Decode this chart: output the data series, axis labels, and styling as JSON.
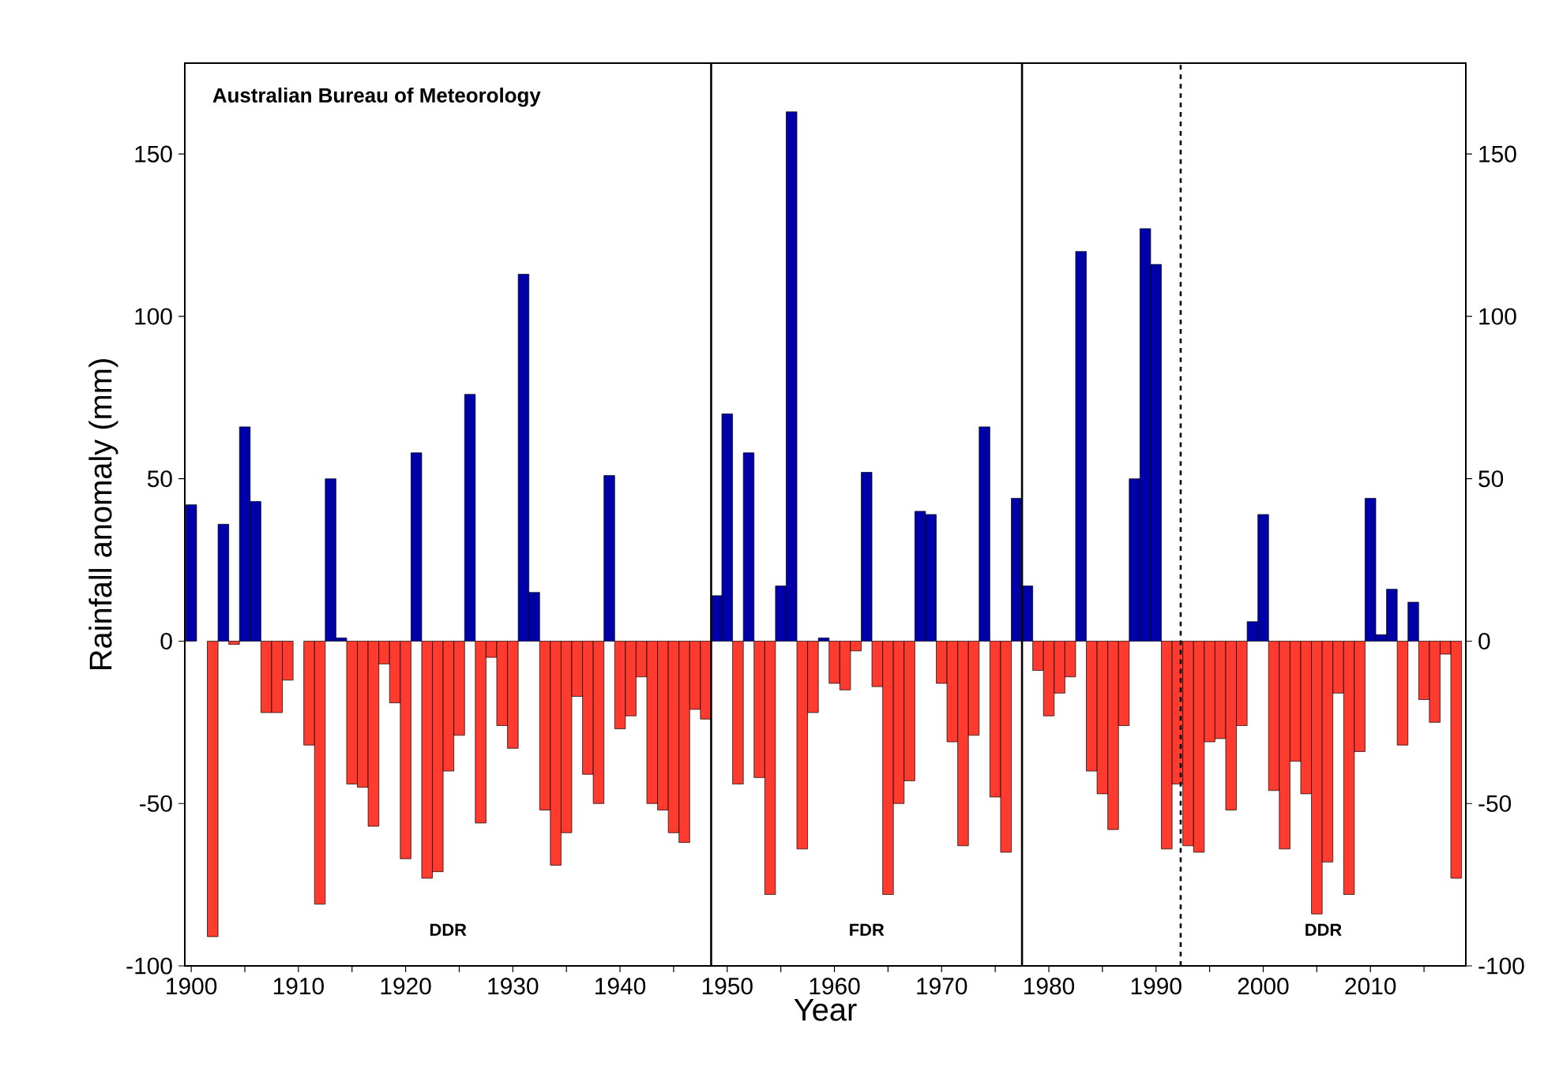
{
  "chart_data": {
    "type": "bar",
    "xlabel": "Year",
    "ylabel": "Rainfall anomaly (mm)",
    "x": [
      1900,
      1901,
      1902,
      1903,
      1904,
      1905,
      1906,
      1907,
      1908,
      1909,
      1910,
      1911,
      1912,
      1913,
      1914,
      1915,
      1916,
      1917,
      1918,
      1919,
      1920,
      1921,
      1922,
      1923,
      1924,
      1925,
      1926,
      1927,
      1928,
      1929,
      1930,
      1931,
      1932,
      1933,
      1934,
      1935,
      1936,
      1937,
      1938,
      1939,
      1940,
      1941,
      1942,
      1943,
      1944,
      1945,
      1946,
      1947,
      1948,
      1949,
      1950,
      1951,
      1952,
      1953,
      1954,
      1955,
      1956,
      1957,
      1958,
      1959,
      1960,
      1961,
      1962,
      1963,
      1964,
      1965,
      1966,
      1967,
      1968,
      1969,
      1970,
      1971,
      1972,
      1973,
      1974,
      1975,
      1976,
      1977,
      1978,
      1979,
      1980,
      1981,
      1982,
      1983,
      1984,
      1985,
      1986,
      1987,
      1988,
      1989,
      1990,
      1991,
      1992,
      1993,
      1994,
      1995,
      1996,
      1997,
      1998,
      1999,
      2000,
      2001,
      2002,
      2003,
      2004,
      2005,
      2006,
      2007,
      2008,
      2009,
      2010,
      2011,
      2012,
      2013,
      2014,
      2015,
      2016,
      2017,
      2018
    ],
    "values": [
      42,
      0,
      -91,
      36,
      -1,
      66,
      43,
      -22,
      -22,
      -12,
      0,
      -32,
      -81,
      50,
      1,
      -44,
      -45,
      -57,
      -7,
      -19,
      -67,
      58,
      -73,
      -71,
      -40,
      -29,
      76,
      -56,
      -5,
      -26,
      -33,
      113,
      15,
      -52,
      -69,
      -59,
      -17,
      -41,
      -50,
      51,
      -27,
      -23,
      -11,
      -50,
      -52,
      -59,
      -62,
      -21,
      -24,
      14,
      70,
      -44,
      58,
      -42,
      -78,
      17,
      163,
      -64,
      -22,
      1,
      -13,
      -15,
      -3,
      52,
      -14,
      -78,
      -50,
      -43,
      40,
      39,
      -13,
      -31,
      -63,
      -29,
      66,
      -48,
      -65,
      44,
      17,
      -9,
      -23,
      -16,
      -11,
      120,
      -40,
      -47,
      -58,
      -26,
      50,
      127,
      116,
      -64,
      -44,
      -63,
      -65,
      -31,
      -30,
      -52,
      -26,
      6,
      39,
      -46,
      -64,
      -37,
      -47,
      -84,
      -68,
      -16,
      -78,
      -34,
      44,
      2,
      16,
      -32,
      12,
      -18,
      -25,
      -4,
      -73
    ],
    "colors": [
      "#0000a8",
      "#0000a8",
      "#ff3a2e",
      "#0000a8",
      "#ff3a2e",
      "#0000a8",
      "#0000a8",
      "#ff3a2e",
      "#ff3a2e",
      "#ff3a2e",
      "#0000a8",
      "#ff3a2e",
      "#ff3a2e",
      "#0000a8",
      "#0000a8",
      "#ff3a2e",
      "#ff3a2e",
      "#ff3a2e",
      "#ff3a2e",
      "#ff3a2e",
      "#ff3a2e",
      "#0000a8",
      "#ff3a2e",
      "#ff3a2e",
      "#ff3a2e",
      "#ff3a2e",
      "#0000a8",
      "#ff3a2e",
      "#ff3a2e",
      "#ff3a2e",
      "#ff3a2e",
      "#0000a8",
      "#0000a8",
      "#ff3a2e",
      "#ff3a2e",
      "#ff3a2e",
      "#ff3a2e",
      "#ff3a2e",
      "#ff3a2e",
      "#0000a8",
      "#ff3a2e",
      "#ff3a2e",
      "#ff3a2e",
      "#ff3a2e",
      "#ff3a2e",
      "#ff3a2e",
      "#ff3a2e",
      "#ff3a2e",
      "#ff3a2e",
      "#0000a8",
      "#0000a8",
      "#ff3a2e",
      "#0000a8",
      "#ff3a2e",
      "#ff3a2e",
      "#0000a8",
      "#0000a8",
      "#ff3a2e",
      "#ff3a2e",
      "#0000a8",
      "#ff3a2e",
      "#ff3a2e",
      "#ff3a2e",
      "#0000a8",
      "#ff3a2e",
      "#ff3a2e",
      "#ff3a2e",
      "#ff3a2e",
      "#0000a8",
      "#0000a8",
      "#ff3a2e",
      "#ff3a2e",
      "#ff3a2e",
      "#ff3a2e",
      "#0000a8",
      "#ff3a2e",
      "#ff3a2e",
      "#0000a8",
      "#0000a8",
      "#ff3a2e",
      "#ff3a2e",
      "#ff3a2e",
      "#ff3a2e",
      "#0000a8",
      "#ff3a2e",
      "#ff3a2e",
      "#ff3a2e",
      "#ff3a2e",
      "#0000a8",
      "#0000a8",
      "#0000a8",
      "#ff3a2e",
      "#ff3a2e",
      "#ff3a2e",
      "#ff3a2e",
      "#ff3a2e",
      "#ff3a2e",
      "#ff3a2e",
      "#ff3a2e",
      "#0000a8",
      "#0000a8",
      "#ff3a2e",
      "#ff3a2e",
      "#ff3a2e",
      "#ff3a2e",
      "#ff3a2e",
      "#ff3a2e",
      "#ff3a2e",
      "#ff3a2e",
      "#ff3a2e",
      "#0000a8",
      "#0000a8",
      "#0000a8",
      "#ff3a2e",
      "#0000a8",
      "#ff3a2e",
      "#ff3a2e",
      "#ff3a2e",
      "#ff3a2e"
    ],
    "xlim": [
      1899.4,
      2018.9
    ],
    "xticks": [
      1900,
      {
        "value": 1905,
        "label": null
      },
      1910,
      {
        "value": 1915,
        "label": null
      },
      1920,
      {
        "value": 1925,
        "label": null
      },
      1930,
      {
        "value": 1935,
        "label": null
      },
      1940,
      {
        "value": 1945,
        "label": null
      },
      1950,
      {
        "value": 1955,
        "label": null
      },
      1960,
      {
        "value": 1965,
        "label": null
      },
      1970,
      {
        "value": 1975,
        "label": null
      },
      1980,
      {
        "value": 1985,
        "label": null
      },
      1990,
      {
        "value": 1995,
        "label": null
      },
      2000,
      {
        "value": 2005,
        "label": null
      },
      2010,
      {
        "value": 2015,
        "label": null
      }
    ],
    "ylim": [
      -100,
      178
    ],
    "yticks": [
      -100,
      -50,
      0,
      50,
      100,
      150
    ],
    "y2lim": [
      -100,
      178
    ],
    "y2ticks": [
      -100,
      -50,
      0,
      50,
      100,
      150
    ],
    "ref_lines": [
      {
        "axis": "x",
        "value": 1948.5,
        "color": "#000000",
        "line_style": "solid"
      },
      {
        "axis": "x",
        "value": 1977.5,
        "color": "#000000",
        "line_style": "solid"
      },
      {
        "axis": "x",
        "value": 1992.3,
        "color": "#000000",
        "line_style": "dashed"
      }
    ],
    "annotations": [
      "Australian Bureau of Meteorology",
      "DDR",
      "FDR",
      "DDR"
    ]
  }
}
